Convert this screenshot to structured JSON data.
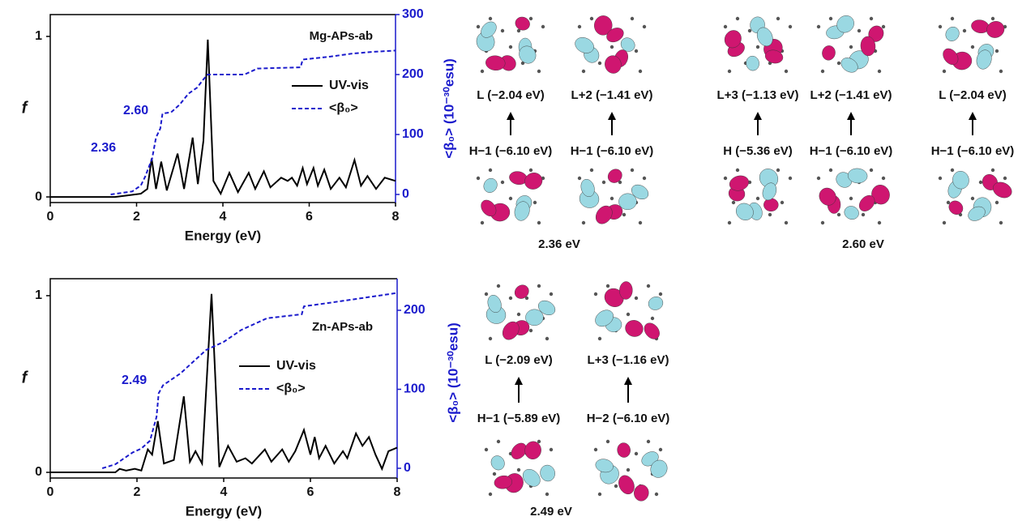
{
  "chart_data": [
    {
      "type": "line",
      "title": "Mg-APs-ab",
      "xlabel": "Energy (eV)",
      "ylabel": "f",
      "y2label": "<β₀> (10⁻³⁰esu)",
      "xlim": [
        0,
        8
      ],
      "xticks": [
        0,
        2,
        4,
        6,
        8
      ],
      "ylim": [
        -0.035,
        1.136
      ],
      "yticks": [
        0,
        1
      ],
      "y2lim": [
        -13.5,
        300
      ],
      "y2ticks": [
        0,
        100,
        200,
        300
      ],
      "annotations": [
        "2.60",
        "2.36"
      ],
      "series": [
        {
          "name": "UV-vis",
          "color": "#000000",
          "axis": "y",
          "x": [
            0,
            1.5,
            1.8,
            2.1,
            2.25,
            2.35,
            2.45,
            2.57,
            2.7,
            2.95,
            3.1,
            3.3,
            3.42,
            3.55,
            3.65,
            3.78,
            3.95,
            4.15,
            4.35,
            4.6,
            4.75,
            4.95,
            5.1,
            5.35,
            5.5,
            5.6,
            5.72,
            5.85,
            5.95,
            6.1,
            6.2,
            6.35,
            6.5,
            6.7,
            6.85,
            7.05,
            7.2,
            7.35,
            7.55,
            7.75,
            8
          ],
          "values": [
            0,
            0,
            0.01,
            0.02,
            0.05,
            0.24,
            0.05,
            0.22,
            0.04,
            0.27,
            0.05,
            0.37,
            0.08,
            0.35,
            0.98,
            0.1,
            0.02,
            0.15,
            0.03,
            0.15,
            0.05,
            0.16,
            0.06,
            0.12,
            0.1,
            0.12,
            0.07,
            0.18,
            0.08,
            0.18,
            0.07,
            0.17,
            0.05,
            0.12,
            0.06,
            0.23,
            0.07,
            0.13,
            0.05,
            0.12,
            0.1
          ]
        },
        {
          "name": "<β₀>",
          "color": "#1a1acc",
          "axis": "y2",
          "x": [
            1.4,
            1.7,
            1.9,
            2.1,
            2.2,
            2.36,
            2.45,
            2.55,
            2.6,
            2.8,
            3.0,
            3.2,
            3.4,
            3.55,
            3.65,
            4.0,
            4.5,
            4.8,
            5.8,
            5.85,
            6.5,
            7.0,
            7.5,
            8
          ],
          "values": [
            0,
            3,
            5,
            15,
            30,
            60,
            95,
            110,
            135,
            137,
            150,
            168,
            178,
            192,
            200,
            200,
            200,
            210,
            212,
            225,
            230,
            235,
            238,
            240
          ]
        }
      ]
    },
    {
      "type": "line",
      "title": "Zn-APs-ab",
      "xlabel": "Energy (eV)",
      "ylabel": "f",
      "y2label": "<β₀> (10⁻³⁰esu)",
      "xlim": [
        0,
        8
      ],
      "xticks": [
        0,
        2,
        4,
        6,
        8
      ],
      "ylim": [
        -0.032,
        1.096
      ],
      "yticks": [
        0,
        1
      ],
      "y2lim": [
        -12.3,
        240
      ],
      "y2ticks": [
        0,
        100,
        200
      ],
      "annotations": [
        "2.49"
      ],
      "series": [
        {
          "name": "UV-vis",
          "color": "#000000",
          "axis": "y",
          "x": [
            0,
            1.5,
            1.6,
            1.75,
            1.95,
            2.1,
            2.25,
            2.35,
            2.48,
            2.62,
            2.85,
            3.08,
            3.22,
            3.35,
            3.5,
            3.72,
            3.9,
            4.1,
            4.3,
            4.5,
            4.65,
            4.95,
            5.1,
            5.35,
            5.5,
            5.65,
            5.85,
            6.0,
            6.1,
            6.2,
            6.35,
            6.55,
            6.75,
            6.85,
            7.05,
            7.2,
            7.35,
            7.5,
            7.65,
            7.8,
            8
          ],
          "values": [
            0,
            0,
            0.02,
            0.01,
            0.02,
            0.01,
            0.13,
            0.1,
            0.29,
            0.05,
            0.07,
            0.43,
            0.06,
            0.12,
            0.05,
            1.01,
            0.03,
            0.15,
            0.06,
            0.08,
            0.05,
            0.13,
            0.06,
            0.13,
            0.06,
            0.12,
            0.24,
            0.1,
            0.2,
            0.08,
            0.15,
            0.05,
            0.12,
            0.08,
            0.22,
            0.15,
            0.2,
            0.1,
            0.02,
            0.12,
            0.14
          ]
        },
        {
          "name": "<β₀>",
          "color": "#1a1acc",
          "axis": "y2",
          "x": [
            1.2,
            1.5,
            1.9,
            2.1,
            2.3,
            2.45,
            2.5,
            2.6,
            3.0,
            3.3,
            3.6,
            4.0,
            4.4,
            5.0,
            5.8,
            5.85,
            6.5,
            7.5,
            8
          ],
          "values": [
            0,
            5,
            20,
            25,
            35,
            65,
            95,
            105,
            120,
            135,
            150,
            160,
            175,
            190,
            195,
            205,
            210,
            218,
            222
          ]
        }
      ]
    }
  ],
  "orbitals": [
    {
      "energy": "2.36 eV",
      "panels": [
        {
          "upper": "L (−2.04 eV)",
          "lower": "H−1 (−6.10 eV)"
        },
        {
          "upper": "L+2 (−1.41 eV)",
          "lower": "H−1 (−6.10 eV)"
        }
      ]
    },
    {
      "energy": "2.60 eV",
      "panels": [
        {
          "upper": "L+3 (−1.13 eV)",
          "lower": "H (−5.36 eV)"
        },
        {
          "upper": "L+2 (−1.41 eV)",
          "lower": "H−1 (−6.10 eV)"
        },
        {
          "upper": "L (−2.04 eV)",
          "lower": "H−1 (−6.10 eV)"
        }
      ]
    },
    {
      "energy": "2.49 eV",
      "panels": [
        {
          "upper": "L (−2.09 eV)",
          "lower": "H−1 (−5.89 eV)"
        },
        {
          "upper": "L+3 (−1.16 eV)",
          "lower": "H−2 (−6.10 eV)"
        }
      ]
    }
  ]
}
